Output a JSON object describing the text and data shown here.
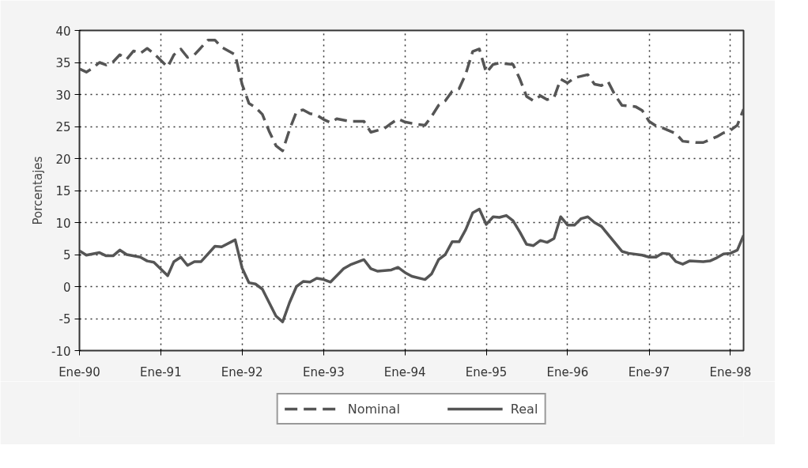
{
  "chart_data": {
    "type": "line",
    "ylabel": "Porcentajes",
    "xlim": [
      "1990-01",
      "1998-03"
    ],
    "xticks": [
      {
        "value": "1990-01",
        "label": "Ene-90"
      },
      {
        "value": "1991-01",
        "label": "Ene-91"
      },
      {
        "value": "1992-01",
        "label": "Ene-92"
      },
      {
        "value": "1993-01",
        "label": "Ene-93"
      },
      {
        "value": "1994-01",
        "label": "Ene-94"
      },
      {
        "value": "1995-01",
        "label": "Ene-95"
      },
      {
        "value": "1996-01",
        "label": "Ene-96"
      },
      {
        "value": "1997-01",
        "label": "Ene-97"
      },
      {
        "value": "1998-01",
        "label": "Ene-98"
      }
    ],
    "ylim": [
      -10,
      40
    ],
    "yticks": [
      -10,
      -5,
      0,
      5,
      10,
      15,
      20,
      25,
      30,
      35,
      40
    ],
    "grid": true,
    "legend": "bottom",
    "marker": "none",
    "series": [
      {
        "name": "Nominal",
        "color": "#555555",
        "line_style": "dashed",
        "x": [
          "1990-01",
          "1990-02",
          "1990-03",
          "1990-04",
          "1990-05",
          "1990-06",
          "1990-07",
          "1990-08",
          "1990-09",
          "1990-10",
          "1990-11",
          "1990-12",
          "1991-02",
          "1991-03",
          "1991-04",
          "1991-05",
          "1991-06",
          "1991-08",
          "1991-09",
          "1991-10",
          "1991-12",
          "1992-01",
          "1992-02",
          "1992-03",
          "1992-04",
          "1992-05",
          "1992-06",
          "1992-07",
          "1992-08",
          "1992-09",
          "1992-10",
          "1992-11",
          "1992-12",
          "1993-01",
          "1993-02",
          "1993-03",
          "1993-05",
          "1993-07",
          "1993-08",
          "1993-10",
          "1993-11",
          "1993-12",
          "1994-01",
          "1994-03",
          "1994-04",
          "1994-05",
          "1994-06",
          "1994-07",
          "1994-08",
          "1994-09",
          "1994-10",
          "1994-11",
          "1994-12",
          "1995-01",
          "1995-02",
          "1995-03",
          "1995-05",
          "1995-06",
          "1995-07",
          "1995-08",
          "1995-09",
          "1995-10",
          "1995-11",
          "1995-12",
          "1996-01",
          "1996-02",
          "1996-04",
          "1996-05",
          "1996-06",
          "1996-07",
          "1996-08",
          "1996-09",
          "1996-11",
          "1996-12",
          "1997-01",
          "1997-02",
          "1997-03",
          "1997-05",
          "1997-06",
          "1997-08",
          "1997-09",
          "1997-11",
          "1997-12",
          "1998-01",
          "1998-02",
          "1998-03"
        ],
        "values": [
          34.0,
          33.5,
          34.1,
          35.0,
          34.6,
          35.1,
          36.2,
          35.5,
          36.8,
          36.4,
          37.2,
          36.4,
          34.3,
          36.2,
          37.1,
          35.8,
          36.2,
          38.5,
          38.5,
          37.4,
          36.2,
          31.6,
          28.6,
          28.0,
          26.9,
          24.3,
          22.0,
          21.2,
          24.5,
          27.3,
          27.6,
          27.0,
          26.8,
          26.1,
          25.6,
          26.2,
          25.8,
          25.8,
          24.1,
          24.7,
          25.5,
          26.2,
          25.7,
          25.3,
          25.2,
          26.6,
          28.3,
          29.0,
          30.5,
          30.9,
          33.2,
          36.7,
          37.1,
          33.4,
          34.7,
          34.9,
          34.7,
          32.4,
          29.7,
          29.0,
          29.8,
          29.2,
          29.5,
          32.4,
          31.8,
          32.6,
          33.1,
          31.6,
          31.4,
          32.0,
          29.9,
          28.3,
          28.1,
          27.5,
          25.8,
          25.1,
          24.8,
          23.9,
          22.7,
          22.5,
          22.5,
          23.4,
          24.0,
          24.4,
          25.2,
          27.7
        ]
      },
      {
        "name": "Real",
        "color": "#555555",
        "line_style": "solid",
        "x": [
          "1990-01",
          "1990-02",
          "1990-04",
          "1990-05",
          "1990-06",
          "1990-07",
          "1990-08",
          "1990-10",
          "1990-11",
          "1990-12",
          "1991-02",
          "1991-03",
          "1991-04",
          "1991-05",
          "1991-06",
          "1991-07",
          "1991-09",
          "1991-10",
          "1991-12",
          "1992-01",
          "1992-02",
          "1992-03",
          "1992-04",
          "1992-06",
          "1992-07",
          "1992-08",
          "1992-09",
          "1992-10",
          "1992-11",
          "1992-12",
          "1993-01",
          "1993-02",
          "1993-04",
          "1993-05",
          "1993-07",
          "1993-08",
          "1993-09",
          "1993-11",
          "1993-12",
          "1994-01",
          "1994-02",
          "1994-04",
          "1994-05",
          "1994-06",
          "1994-07",
          "1994-08",
          "1994-09",
          "1994-10",
          "1994-11",
          "1994-12",
          "1995-01",
          "1995-02",
          "1995-03",
          "1995-04",
          "1995-05",
          "1995-06",
          "1995-07",
          "1995-08",
          "1995-09",
          "1995-10",
          "1995-11",
          "1995-12",
          "1996-01",
          "1996-02",
          "1996-03",
          "1996-04",
          "1996-05",
          "1996-06",
          "1996-09",
          "1996-10",
          "1996-12",
          "1997-01",
          "1997-02",
          "1997-03",
          "1997-04",
          "1997-05",
          "1997-06",
          "1997-07",
          "1997-09",
          "1997-10",
          "1997-11",
          "1997-12",
          "1998-01",
          "1998-02",
          "1998-03"
        ],
        "values": [
          5.6,
          4.9,
          5.3,
          4.8,
          4.8,
          5.7,
          5.0,
          4.6,
          4.0,
          3.8,
          1.7,
          3.9,
          4.6,
          3.3,
          3.9,
          3.9,
          6.3,
          6.2,
          7.3,
          2.9,
          0.6,
          0.4,
          -0.4,
          -4.6,
          -5.5,
          -2.5,
          0.0,
          0.8,
          0.7,
          1.3,
          1.1,
          0.7,
          2.8,
          3.4,
          4.2,
          2.8,
          2.4,
          2.6,
          3.0,
          2.2,
          1.6,
          1.1,
          2.0,
          4.2,
          5.0,
          7.0,
          7.0,
          8.9,
          11.5,
          12.1,
          9.7,
          10.9,
          10.8,
          11.1,
          10.3,
          8.5,
          6.6,
          6.4,
          7.2,
          6.9,
          7.5,
          10.9,
          9.6,
          9.6,
          10.6,
          10.9,
          10.0,
          9.4,
          5.5,
          5.2,
          4.9,
          4.6,
          4.6,
          5.2,
          5.1,
          3.9,
          3.5,
          4.0,
          3.9,
          4.0,
          4.5,
          5.1,
          5.2,
          5.7,
          8.0
        ]
      }
    ]
  }
}
